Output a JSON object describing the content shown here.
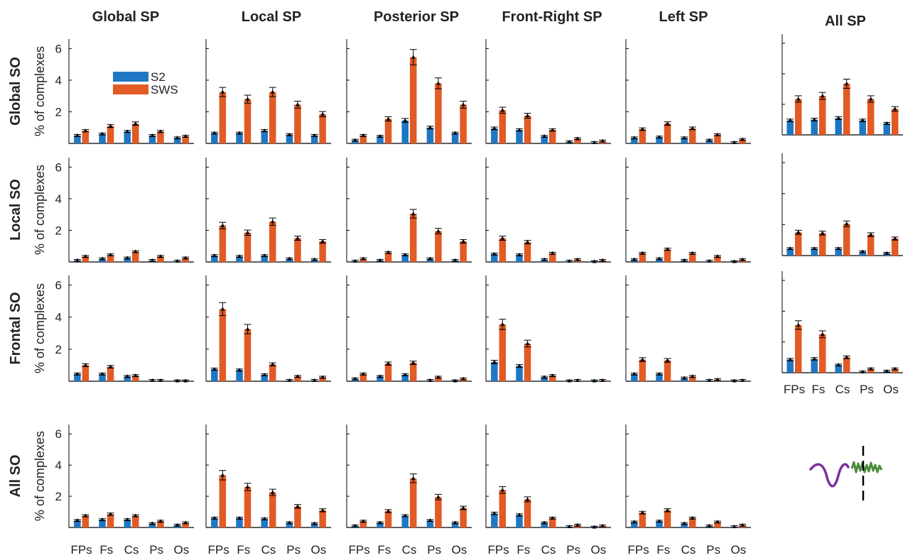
{
  "legend": {
    "labels": [
      "S2",
      "SWS"
    ]
  },
  "colors": {
    "S2": "#1f77c4",
    "SWS": "#e25a24",
    "axis": "#000000",
    "waveform_so": "#7b2fa0",
    "waveform_sp": "#4a8a3a"
  },
  "chart_data": {
    "type": "bar",
    "y_axis_label": "% of complexes",
    "y_ticks": [
      0,
      2,
      4,
      6
    ],
    "ylim": [
      0,
      6.6
    ],
    "categories": [
      "FPs",
      "Fs",
      "Cs",
      "Ps",
      "Os"
    ],
    "series_names": [
      "S2",
      "SWS"
    ],
    "column_titles": [
      "Global SP",
      "Local SP",
      "Posterior SP",
      "Front-Right SP",
      "Left SP",
      "All SP"
    ],
    "row_titles": [
      "Global SO",
      "Local SO",
      "Frontal SO",
      "All SO"
    ],
    "legend_position": "inside top-left panel, upper-right",
    "panels": [
      [
        {
          "S2": [
            0.5,
            0.6,
            0.75,
            0.5,
            0.35
          ],
          "SWS": [
            0.8,
            1.1,
            1.25,
            0.75,
            0.45
          ]
        },
        {
          "S2": [
            0.65,
            0.65,
            0.8,
            0.55,
            0.5
          ],
          "SWS": [
            3.25,
            2.8,
            3.25,
            2.45,
            1.85
          ]
        },
        {
          "S2": [
            0.2,
            0.45,
            1.45,
            1.0,
            0.65
          ],
          "SWS": [
            0.5,
            1.55,
            5.45,
            3.8,
            2.45
          ]
        },
        {
          "S2": [
            0.95,
            0.85,
            0.45,
            0.1,
            0.05
          ],
          "SWS": [
            2.1,
            1.75,
            0.85,
            0.3,
            0.15
          ]
        },
        {
          "S2": [
            0.35,
            0.4,
            0.35,
            0.2,
            0.05
          ],
          "SWS": [
            0.9,
            1.25,
            0.95,
            0.55,
            0.25
          ]
        },
        {
          "S2": [
            0.95,
            1.0,
            1.1,
            0.95,
            0.75
          ],
          "SWS": [
            2.35,
            2.55,
            3.35,
            2.35,
            1.7
          ]
        }
      ],
      [
        {
          "S2": [
            0.1,
            0.2,
            0.25,
            0.1,
            0.05
          ],
          "SWS": [
            0.35,
            0.45,
            0.65,
            0.35,
            0.25
          ]
        },
        {
          "S2": [
            0.4,
            0.35,
            0.4,
            0.2,
            0.15
          ],
          "SWS": [
            2.3,
            1.85,
            2.55,
            1.5,
            1.3
          ]
        },
        {
          "S2": [
            0.05,
            0.1,
            0.45,
            0.2,
            0.1
          ],
          "SWS": [
            0.2,
            0.6,
            3.05,
            1.95,
            1.3
          ]
        },
        {
          "S2": [
            0.5,
            0.45,
            0.15,
            0.05,
            0.02
          ],
          "SWS": [
            1.5,
            1.25,
            0.55,
            0.15,
            0.1
          ]
        },
        {
          "S2": [
            0.15,
            0.2,
            0.1,
            0.05,
            0.02
          ],
          "SWS": [
            0.55,
            0.8,
            0.55,
            0.35,
            0.15
          ]
        },
        {
          "S2": [
            0.45,
            0.45,
            0.45,
            0.25,
            0.15
          ],
          "SWS": [
            1.5,
            1.45,
            2.05,
            1.35,
            1.1
          ]
        }
      ],
      [
        {
          "S2": [
            0.45,
            0.45,
            0.3,
            0.05,
            0.02
          ],
          "SWS": [
            1.0,
            0.9,
            0.35,
            0.05,
            0.02
          ]
        },
        {
          "S2": [
            0.75,
            0.7,
            0.4,
            0.05,
            0.05
          ],
          "SWS": [
            4.5,
            3.25,
            1.05,
            0.3,
            0.25
          ]
        },
        {
          "S2": [
            0.15,
            0.3,
            0.4,
            0.05,
            0.02
          ],
          "SWS": [
            0.45,
            1.1,
            1.15,
            0.25,
            0.15
          ]
        },
        {
          "S2": [
            1.2,
            0.95,
            0.25,
            0.02,
            0.02
          ],
          "SWS": [
            3.55,
            2.35,
            0.35,
            0.05,
            0.05
          ]
        },
        {
          "S2": [
            0.45,
            0.45,
            0.2,
            0.05,
            0.02
          ],
          "SWS": [
            1.35,
            1.3,
            0.3,
            0.1,
            0.05
          ]
        },
        {
          "S2": [
            0.85,
            0.9,
            0.5,
            0.05,
            0.1
          ],
          "SWS": [
            3.1,
            2.5,
            1.0,
            0.25,
            0.25
          ]
        }
      ],
      [
        {
          "S2": [
            0.45,
            0.5,
            0.5,
            0.25,
            0.15
          ],
          "SWS": [
            0.75,
            0.85,
            0.75,
            0.4,
            0.3
          ]
        },
        {
          "S2": [
            0.6,
            0.6,
            0.55,
            0.3,
            0.25
          ],
          "SWS": [
            3.35,
            2.6,
            2.25,
            1.35,
            1.1
          ]
        },
        {
          "S2": [
            0.1,
            0.3,
            0.75,
            0.45,
            0.3
          ],
          "SWS": [
            0.4,
            1.05,
            3.15,
            1.95,
            1.25
          ]
        },
        {
          "S2": [
            0.9,
            0.8,
            0.3,
            0.05,
            0.02
          ],
          "SWS": [
            2.4,
            1.8,
            0.6,
            0.15,
            0.1
          ]
        },
        {
          "S2": [
            0.35,
            0.4,
            0.25,
            0.1,
            0.05
          ],
          "SWS": [
            0.95,
            1.1,
            0.6,
            0.35,
            0.15
          ]
        },
        null
      ]
    ]
  }
}
